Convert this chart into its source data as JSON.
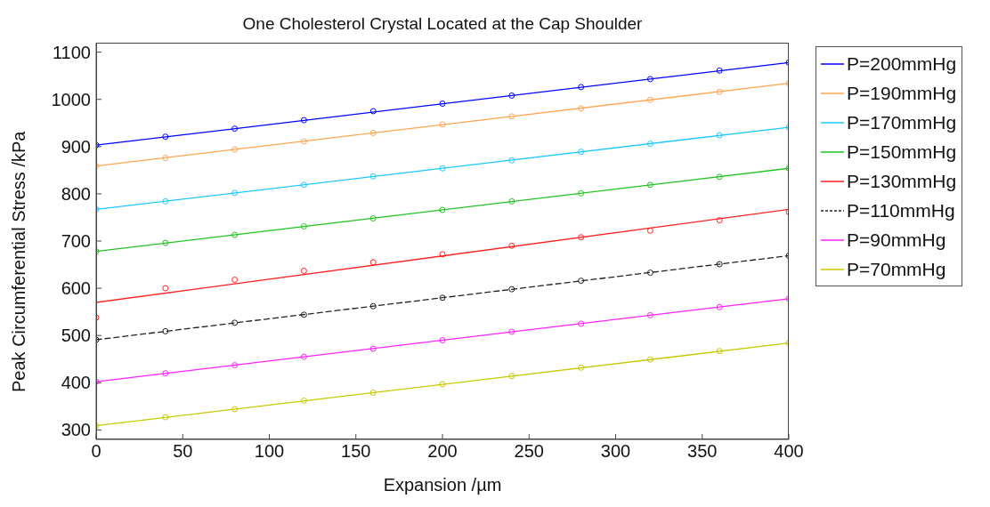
{
  "chart_data": {
    "type": "line",
    "title": "One Cholesterol Crystal Located at the Cap Shoulder",
    "xlabel": "Expansion /µm",
    "ylabel": "Peak Circumferential Stress /kPa",
    "xlim": [
      0,
      400
    ],
    "xticks": [
      0,
      50,
      100,
      150,
      200,
      250,
      300,
      350,
      400
    ],
    "ylim": [
      280,
      1120
    ],
    "yticks": [
      300,
      400,
      500,
      600,
      700,
      800,
      900,
      1000,
      1100
    ],
    "grid": false,
    "legend": "right",
    "series": [
      {
        "name": "P=200mmHg",
        "color": "#0000ff",
        "x": [
          0,
          400
        ],
        "values": [
          903,
          1078
        ],
        "line_style": "solid",
        "marker": "none"
      },
      {
        "name": "P=190mmHg",
        "type": "line",
        "color": "#ffa552",
        "x": [
          0,
          400
        ],
        "values": [
          859,
          1034
        ],
        "line_style": "solid",
        "marker": "none"
      },
      {
        "name": "P=170mmHg",
        "type": "line",
        "color": "#1ec8ff",
        "x": [
          0,
          400
        ],
        "values": [
          767,
          941
        ],
        "line_style": "solid",
        "marker": "none"
      },
      {
        "name": "P=150mmHg",
        "type": "line",
        "color": "#22c322",
        "x": [
          0,
          400
        ],
        "values": [
          678,
          854
        ],
        "line_style": "solid",
        "marker": "none"
      },
      {
        "name": "P=130mmHg",
        "type": "line",
        "color": "#ff2020",
        "x": [
          0,
          400
        ],
        "values": [
          570,
          767
        ],
        "line_style": "solid",
        "marker": "none"
      },
      {
        "name": "P=110mmHg",
        "type": "line",
        "color": "#222222",
        "x": [
          0,
          400
        ],
        "values": [
          491,
          669
        ],
        "line_style": "dashed",
        "marker": "none"
      },
      {
        "name": "P=90mmHg",
        "type": "line",
        "color": "#ff20ff",
        "x": [
          0,
          400
        ],
        "values": [
          402,
          578
        ],
        "line_style": "solid",
        "marker": "none"
      },
      {
        "name": "P=70mmHg",
        "type": "line",
        "color": "#c8c800",
        "x": [
          0,
          400
        ],
        "values": [
          309,
          484
        ],
        "line_style": "solid",
        "marker": "none"
      },
      {
        "type": "scatter",
        "color": "#0000ff",
        "x": [
          0,
          40,
          80,
          120,
          160,
          200,
          240,
          280,
          320,
          360,
          400
        ],
        "values": [
          903,
          921,
          938,
          956,
          975,
          991,
          1008,
          1026,
          1043,
          1061,
          1078
        ],
        "marker": "circle"
      },
      {
        "type": "scatter",
        "color": "#ffa552",
        "x": [
          0,
          40,
          80,
          120,
          160,
          200,
          240,
          280,
          320,
          360,
          400
        ],
        "values": [
          859,
          876,
          894,
          911,
          929,
          947,
          964,
          981,
          999,
          1016,
          1034
        ],
        "marker": "circle"
      },
      {
        "type": "scatter",
        "color": "#1ec8ff",
        "x": [
          0,
          40,
          80,
          120,
          160,
          200,
          240,
          280,
          320,
          360,
          400
        ],
        "values": [
          767,
          784,
          802,
          819,
          837,
          854,
          871,
          889,
          906,
          924,
          941
        ],
        "marker": "circle"
      },
      {
        "type": "scatter",
        "color": "#22c322",
        "x": [
          0,
          40,
          80,
          120,
          160,
          200,
          240,
          280,
          320,
          360,
          400
        ],
        "values": [
          678,
          696,
          713,
          731,
          748,
          766,
          784,
          801,
          819,
          836,
          854
        ],
        "marker": "circle"
      },
      {
        "type": "scatter",
        "color": "#ff2020",
        "x": [
          0,
          40,
          80,
          120,
          160,
          200,
          240,
          280,
          320,
          360,
          400
        ],
        "values": [
          538,
          600,
          618,
          637,
          655,
          672,
          690,
          708,
          722,
          744,
          762
        ],
        "marker": "circle"
      },
      {
        "type": "scatter",
        "color": "#222222",
        "x": [
          0,
          40,
          80,
          120,
          160,
          200,
          240,
          280,
          320,
          360,
          400
        ],
        "values": [
          491,
          509,
          527,
          544,
          562,
          580,
          598,
          616,
          633,
          651,
          669
        ],
        "marker": "circle"
      },
      {
        "type": "scatter",
        "color": "#ff20ff",
        "x": [
          0,
          40,
          80,
          120,
          160,
          200,
          240,
          280,
          320,
          360,
          400
        ],
        "values": [
          402,
          420,
          437,
          455,
          472,
          490,
          508,
          525,
          543,
          560,
          578
        ],
        "marker": "circle"
      },
      {
        "type": "scatter",
        "color": "#c8c800",
        "x": [
          0,
          40,
          80,
          120,
          160,
          200,
          240,
          280,
          320,
          360,
          400
        ],
        "values": [
          309,
          327,
          344,
          362,
          379,
          397,
          414,
          432,
          449,
          467,
          484
        ],
        "marker": "circle"
      }
    ]
  }
}
